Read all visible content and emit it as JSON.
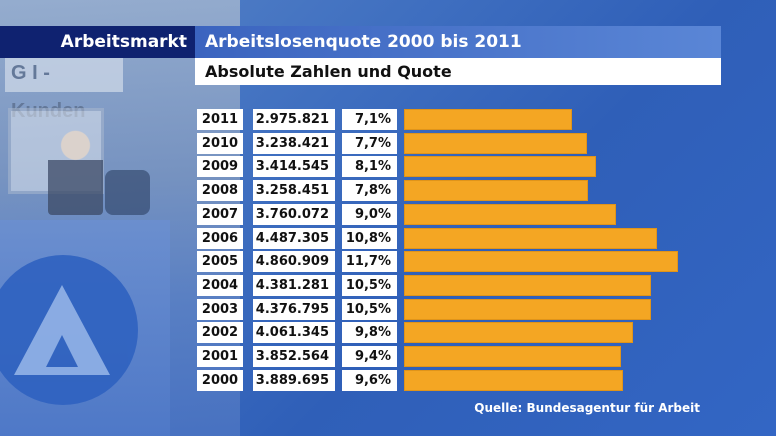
{
  "header": {
    "section": "Arbeitsmarkt",
    "title": "Arbeitslosenquote 2000 bis 2011",
    "subtitle": "Absolute Zahlen und Quote"
  },
  "background": {
    "sign_text": "G I - Kunden"
  },
  "colors": {
    "bar": "#f4a623",
    "header_dark": "#0f2270",
    "header_blue": "#3b64bf"
  },
  "chart_data": {
    "type": "bar",
    "orientation": "horizontal",
    "categories": [
      "2011",
      "2010",
      "2009",
      "2008",
      "2007",
      "2006",
      "2005",
      "2004",
      "2003",
      "2002",
      "2001",
      "2000"
    ],
    "absolute_labels": [
      "2.975.821",
      "3.238.421",
      "3.414.545",
      "3.258.451",
      "3.760.072",
      "4.487.305",
      "4.860.909",
      "4.381.281",
      "4.376.795",
      "4.061.345",
      "3.852.564",
      "3.889.695"
    ],
    "quote_labels": [
      "7,1%",
      "7,7%",
      "8,1%",
      "7,8%",
      "9,0%",
      "10,8%",
      "11,7%",
      "10,5%",
      "10,5%",
      "9,8%",
      "9,4%",
      "9,6%"
    ],
    "values": [
      2975821,
      3238421,
      3414545,
      3258451,
      3760072,
      4487305,
      4860909,
      4381281,
      4376795,
      4061345,
      3852564,
      3889695
    ],
    "title": "Arbeitslosenquote 2000 bis 2011",
    "subtitle": "Absolute Zahlen und Quote",
    "xlabel": "",
    "ylabel": "",
    "xlim": [
      0,
      4860909
    ],
    "grid": false,
    "legend": "none"
  },
  "footer": {
    "source": "Quelle: Bundesagentur für Arbeit"
  }
}
